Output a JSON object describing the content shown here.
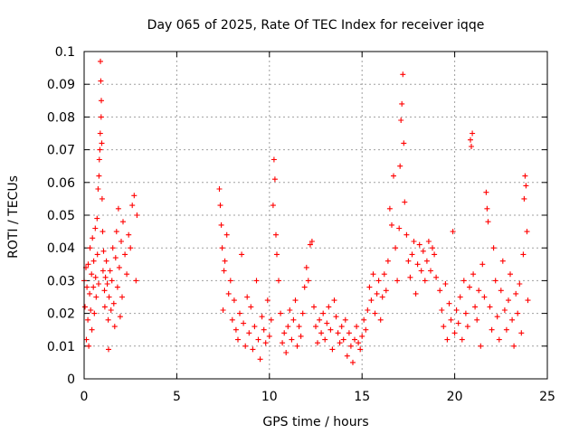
{
  "chart_data": {
    "type": "scatter",
    "title": "Day 065 of 2025, Rate Of TEC Index for receiver iqqe",
    "xlabel": "GPS time / hours",
    "ylabel": "ROTI / TECUs",
    "xlim": [
      0,
      25
    ],
    "ylim": [
      0,
      0.1
    ],
    "x_ticks": [
      "0",
      "5",
      "10",
      "15",
      "20",
      "25"
    ],
    "y_ticks": [
      "0",
      "0.01",
      "0.02",
      "0.03",
      "0.04",
      "0.05",
      "0.06",
      "0.07",
      "0.08",
      "0.09",
      "0.1"
    ],
    "x_tick_values": [
      0,
      5,
      10,
      15,
      20,
      25
    ],
    "y_tick_values": [
      0,
      0.01,
      0.02,
      0.03,
      0.04,
      0.05,
      0.06,
      0.07,
      0.08,
      0.09,
      0.1
    ],
    "grid": true,
    "marker": "+",
    "series": [
      {
        "name": "ROTI",
        "color": "#ff0000",
        "points": [
          [
            0.0,
            0.03
          ],
          [
            0.05,
            0.022
          ],
          [
            0.1,
            0.034
          ],
          [
            0.12,
            0.012
          ],
          [
            0.15,
            0.028
          ],
          [
            0.2,
            0.018
          ],
          [
            0.22,
            0.035
          ],
          [
            0.25,
            0.01
          ],
          [
            0.3,
            0.026
          ],
          [
            0.32,
            0.04
          ],
          [
            0.35,
            0.021
          ],
          [
            0.4,
            0.032
          ],
          [
            0.42,
            0.015
          ],
          [
            0.45,
            0.043
          ],
          [
            0.5,
            0.028
          ],
          [
            0.52,
            0.036
          ],
          [
            0.55,
            0.02
          ],
          [
            0.6,
            0.046
          ],
          [
            0.62,
            0.031
          ],
          [
            0.65,
            0.025
          ],
          [
            0.7,
            0.049
          ],
          [
            0.72,
            0.038
          ],
          [
            0.75,
            0.058
          ],
          [
            0.78,
            0.029
          ],
          [
            0.8,
            0.062
          ],
          [
            0.82,
            0.067
          ],
          [
            0.85,
            0.07
          ],
          [
            0.87,
            0.075
          ],
          [
            0.88,
            0.097
          ],
          [
            0.9,
            0.091
          ],
          [
            0.92,
            0.08
          ],
          [
            0.93,
            0.085
          ],
          [
            0.95,
            0.072
          ],
          [
            0.97,
            0.055
          ],
          [
            1.0,
            0.045
          ],
          [
            1.02,
            0.033
          ],
          [
            1.05,
            0.039
          ],
          [
            1.1,
            0.027
          ],
          [
            1.12,
            0.022
          ],
          [
            1.15,
            0.031
          ],
          [
            1.2,
            0.036
          ],
          [
            1.25,
            0.029
          ],
          [
            1.3,
            0.018
          ],
          [
            1.32,
            0.009
          ],
          [
            1.35,
            0.025
          ],
          [
            1.4,
            0.033
          ],
          [
            1.45,
            0.021
          ],
          [
            1.5,
            0.03
          ],
          [
            1.55,
            0.04
          ],
          [
            1.6,
            0.023
          ],
          [
            1.65,
            0.016
          ],
          [
            1.7,
            0.037
          ],
          [
            1.75,
            0.045
          ],
          [
            1.8,
            0.028
          ],
          [
            1.85,
            0.052
          ],
          [
            1.9,
            0.034
          ],
          [
            1.95,
            0.019
          ],
          [
            2.0,
            0.042
          ],
          [
            2.05,
            0.025
          ],
          [
            2.1,
            0.048
          ],
          [
            2.2,
            0.038
          ],
          [
            2.3,
            0.032
          ],
          [
            2.4,
            0.044
          ],
          [
            2.5,
            0.04
          ],
          [
            2.6,
            0.053
          ],
          [
            2.7,
            0.056
          ],
          [
            2.8,
            0.03
          ],
          [
            2.85,
            0.05
          ],
          [
            7.3,
            0.058
          ],
          [
            7.35,
            0.053
          ],
          [
            7.4,
            0.047
          ],
          [
            7.45,
            0.04
          ],
          [
            7.5,
            0.021
          ],
          [
            7.55,
            0.033
          ],
          [
            7.6,
            0.036
          ],
          [
            7.7,
            0.044
          ],
          [
            7.8,
            0.026
          ],
          [
            7.9,
            0.03
          ],
          [
            8.0,
            0.018
          ],
          [
            8.1,
            0.024
          ],
          [
            8.2,
            0.015
          ],
          [
            8.3,
            0.012
          ],
          [
            8.4,
            0.02
          ],
          [
            8.5,
            0.038
          ],
          [
            8.6,
            0.017
          ],
          [
            8.7,
            0.01
          ],
          [
            8.8,
            0.025
          ],
          [
            8.9,
            0.014
          ],
          [
            9.0,
            0.022
          ],
          [
            9.1,
            0.009
          ],
          [
            9.2,
            0.016
          ],
          [
            9.3,
            0.03
          ],
          [
            9.4,
            0.012
          ],
          [
            9.5,
            0.006
          ],
          [
            9.6,
            0.019
          ],
          [
            9.7,
            0.015
          ],
          [
            9.8,
            0.011
          ],
          [
            9.9,
            0.024
          ],
          [
            10.0,
            0.013
          ],
          [
            10.1,
            0.018
          ],
          [
            10.2,
            0.053
          ],
          [
            10.25,
            0.067
          ],
          [
            10.3,
            0.061
          ],
          [
            10.35,
            0.044
          ],
          [
            10.4,
            0.038
          ],
          [
            10.5,
            0.03
          ],
          [
            10.6,
            0.02
          ],
          [
            10.7,
            0.011
          ],
          [
            10.8,
            0.014
          ],
          [
            10.9,
            0.008
          ],
          [
            11.0,
            0.016
          ],
          [
            11.1,
            0.021
          ],
          [
            11.2,
            0.012
          ],
          [
            11.3,
            0.018
          ],
          [
            11.4,
            0.024
          ],
          [
            11.5,
            0.01
          ],
          [
            11.6,
            0.016
          ],
          [
            11.7,
            0.013
          ],
          [
            11.8,
            0.02
          ],
          [
            11.9,
            0.028
          ],
          [
            12.0,
            0.034
          ],
          [
            12.1,
            0.03
          ],
          [
            12.2,
            0.041
          ],
          [
            12.3,
            0.042
          ],
          [
            12.4,
            0.022
          ],
          [
            12.5,
            0.016
          ],
          [
            12.6,
            0.011
          ],
          [
            12.7,
            0.018
          ],
          [
            12.8,
            0.014
          ],
          [
            12.9,
            0.02
          ],
          [
            13.0,
            0.012
          ],
          [
            13.1,
            0.017
          ],
          [
            13.2,
            0.022
          ],
          [
            13.3,
            0.015
          ],
          [
            13.4,
            0.009
          ],
          [
            13.5,
            0.024
          ],
          [
            13.6,
            0.019
          ],
          [
            13.7,
            0.014
          ],
          [
            13.8,
            0.011
          ],
          [
            13.9,
            0.016
          ],
          [
            14.0,
            0.012
          ],
          [
            14.1,
            0.018
          ],
          [
            14.2,
            0.007
          ],
          [
            14.3,
            0.014
          ],
          [
            14.4,
            0.01
          ],
          [
            14.5,
            0.005
          ],
          [
            14.6,
            0.012
          ],
          [
            14.7,
            0.016
          ],
          [
            14.8,
            0.011
          ],
          [
            14.9,
            0.009
          ],
          [
            15.0,
            0.013
          ],
          [
            15.1,
            0.018
          ],
          [
            15.2,
            0.015
          ],
          [
            15.3,
            0.021
          ],
          [
            15.4,
            0.028
          ],
          [
            15.5,
            0.024
          ],
          [
            15.6,
            0.032
          ],
          [
            15.7,
            0.02
          ],
          [
            15.8,
            0.026
          ],
          [
            15.9,
            0.03
          ],
          [
            16.0,
            0.018
          ],
          [
            16.1,
            0.025
          ],
          [
            16.2,
            0.032
          ],
          [
            16.3,
            0.027
          ],
          [
            16.4,
            0.036
          ],
          [
            16.5,
            0.052
          ],
          [
            16.6,
            0.047
          ],
          [
            16.7,
            0.062
          ],
          [
            16.8,
            0.04
          ],
          [
            16.9,
            0.03
          ],
          [
            17.0,
            0.046
          ],
          [
            17.05,
            0.065
          ],
          [
            17.1,
            0.079
          ],
          [
            17.15,
            0.084
          ],
          [
            17.2,
            0.093
          ],
          [
            17.25,
            0.072
          ],
          [
            17.3,
            0.054
          ],
          [
            17.4,
            0.044
          ],
          [
            17.5,
            0.036
          ],
          [
            17.6,
            0.031
          ],
          [
            17.7,
            0.038
          ],
          [
            17.8,
            0.042
          ],
          [
            17.9,
            0.026
          ],
          [
            18.0,
            0.035
          ],
          [
            18.1,
            0.041
          ],
          [
            18.2,
            0.033
          ],
          [
            18.3,
            0.039
          ],
          [
            18.4,
            0.03
          ],
          [
            18.5,
            0.036
          ],
          [
            18.6,
            0.042
          ],
          [
            18.7,
            0.033
          ],
          [
            18.8,
            0.04
          ],
          [
            18.9,
            0.038
          ],
          [
            19.0,
            0.031
          ],
          [
            19.2,
            0.027
          ],
          [
            19.3,
            0.021
          ],
          [
            19.4,
            0.016
          ],
          [
            19.5,
            0.029
          ],
          [
            19.6,
            0.012
          ],
          [
            19.7,
            0.023
          ],
          [
            19.8,
            0.018
          ],
          [
            19.9,
            0.045
          ],
          [
            20.0,
            0.014
          ],
          [
            20.1,
            0.021
          ],
          [
            20.2,
            0.017
          ],
          [
            20.3,
            0.025
          ],
          [
            20.4,
            0.012
          ],
          [
            20.5,
            0.03
          ],
          [
            20.6,
            0.02
          ],
          [
            20.7,
            0.016
          ],
          [
            20.8,
            0.028
          ],
          [
            20.85,
            0.073
          ],
          [
            20.9,
            0.071
          ],
          [
            20.95,
            0.075
          ],
          [
            21.0,
            0.032
          ],
          [
            21.1,
            0.022
          ],
          [
            21.2,
            0.018
          ],
          [
            21.3,
            0.027
          ],
          [
            21.4,
            0.01
          ],
          [
            21.5,
            0.035
          ],
          [
            21.6,
            0.025
          ],
          [
            21.7,
            0.057
          ],
          [
            21.75,
            0.052
          ],
          [
            21.8,
            0.048
          ],
          [
            21.9,
            0.022
          ],
          [
            22.0,
            0.015
          ],
          [
            22.1,
            0.04
          ],
          [
            22.2,
            0.03
          ],
          [
            22.3,
            0.019
          ],
          [
            22.4,
            0.012
          ],
          [
            22.5,
            0.027
          ],
          [
            22.6,
            0.036
          ],
          [
            22.7,
            0.021
          ],
          [
            22.8,
            0.015
          ],
          [
            22.9,
            0.024
          ],
          [
            23.0,
            0.032
          ],
          [
            23.1,
            0.018
          ],
          [
            23.2,
            0.01
          ],
          [
            23.3,
            0.026
          ],
          [
            23.4,
            0.02
          ],
          [
            23.5,
            0.029
          ],
          [
            23.6,
            0.014
          ],
          [
            23.7,
            0.038
          ],
          [
            23.75,
            0.055
          ],
          [
            23.8,
            0.062
          ],
          [
            23.85,
            0.059
          ],
          [
            23.9,
            0.045
          ],
          [
            23.95,
            0.024
          ]
        ]
      }
    ]
  }
}
